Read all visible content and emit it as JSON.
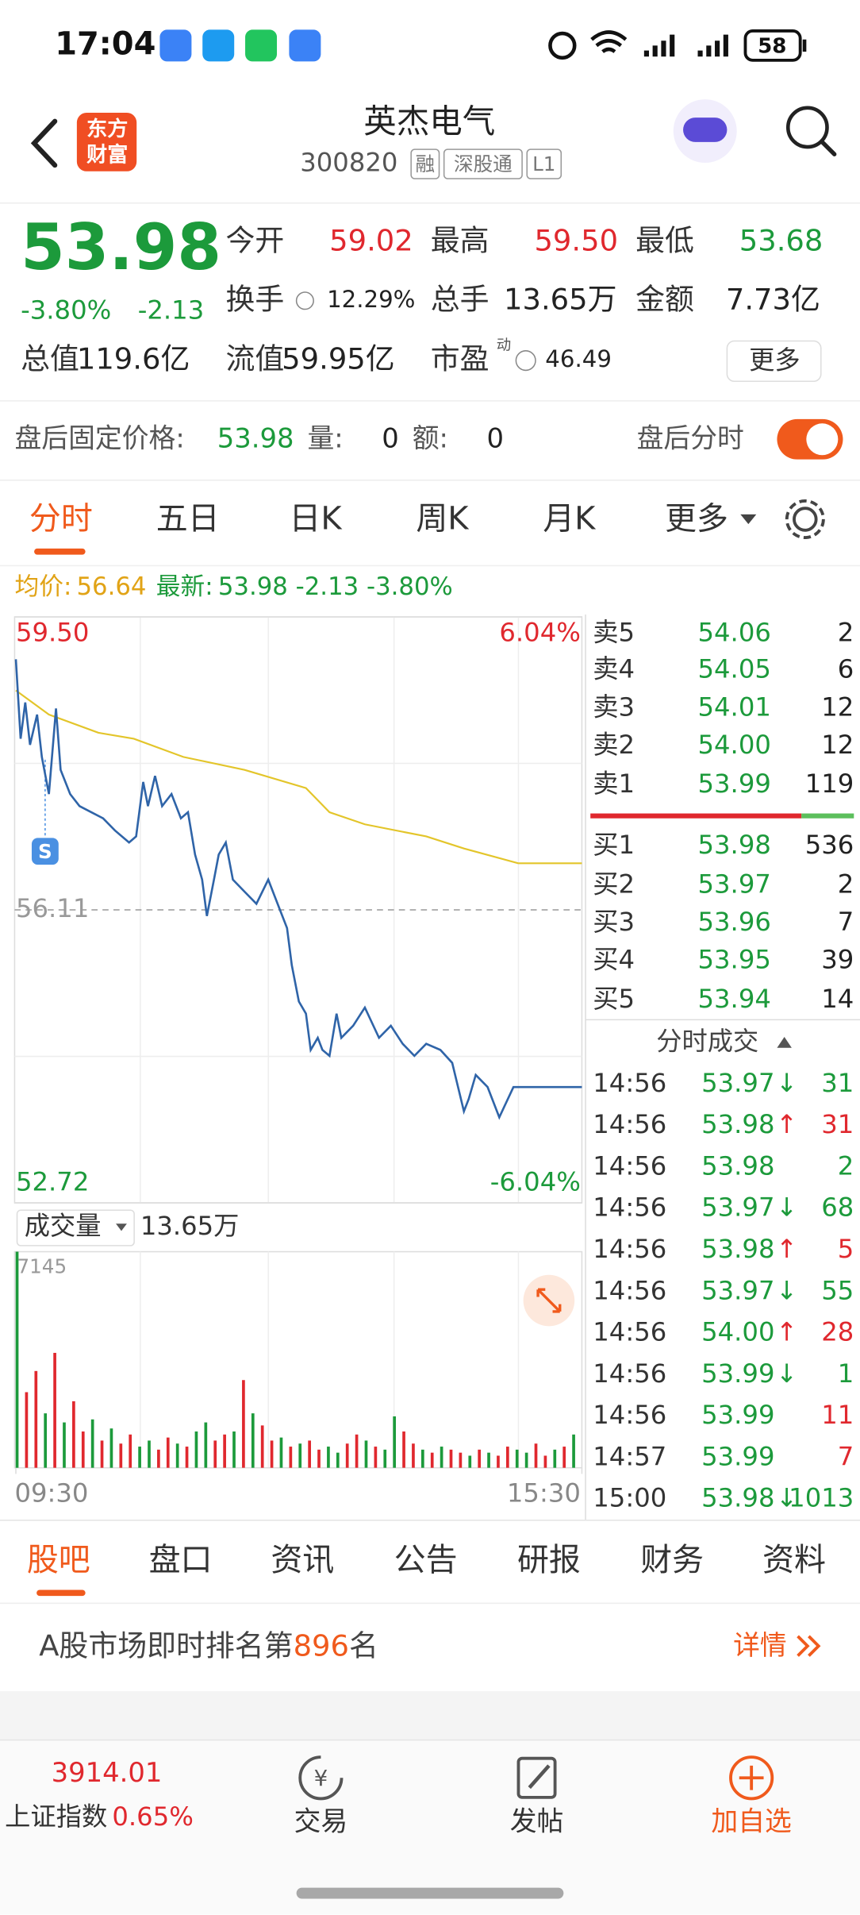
{
  "status_bar": {
    "time": "17:04",
    "battery": "58"
  },
  "header": {
    "logo": [
      "东方",
      "财富"
    ],
    "title": "英杰电气",
    "code": "300820",
    "tags": [
      "融",
      "深股通",
      "L1"
    ]
  },
  "quote": {
    "price": "53.98",
    "change_pct": "-3.80%",
    "change": "-2.13",
    "stats": [
      {
        "label": "今开",
        "value": "59.02"
      },
      {
        "label": "最高",
        "value": "59.50"
      },
      {
        "label": "最低",
        "value": "53.68"
      },
      {
        "label": "换手",
        "value": "12.29%"
      },
      {
        "label": "总手",
        "value": "13.65万"
      },
      {
        "label": "金额",
        "value": "7.73亿"
      },
      {
        "label": "总值",
        "value": "119.6亿"
      },
      {
        "label": "流值",
        "value": "59.95亿"
      },
      {
        "label": "市盈",
        "sup": "动",
        "value": "46.49"
      }
    ],
    "more": "更多"
  },
  "after_hours": {
    "label": "盘后固定价格:",
    "price": "53.98",
    "vol_label": "量:",
    "vol": "0",
    "amt_label": "额:",
    "amt": "0",
    "toggle_label": "盘后分时"
  },
  "tabs": [
    "分时",
    "五日",
    "日K",
    "周K",
    "月K",
    "更多"
  ],
  "info": {
    "avg_label": "均价:",
    "avg": "56.64",
    "last_label": "最新:",
    "last": "53.98 -2.13 -3.80%"
  },
  "intraday": {
    "type": "line",
    "xlim": [
      0,
      240
    ],
    "ylim": [
      52.72,
      59.5
    ],
    "y2lim": [
      -6.04,
      6.04
    ],
    "yticks": [
      52.72,
      56.11,
      {
        "value": 59.5,
        "label": "59.50"
      }
    ],
    "y2ticks": [
      {
        "value": -6.04,
        "label": "-6.04%"
      },
      {
        "value": 6.04,
        "label": "6.04%"
      }
    ],
    "xticks": [
      {
        "value": 0,
        "label": "09:30"
      },
      {
        "value": 240,
        "label": "15:30"
      }
    ],
    "price": {
      "color": "#2f64a8",
      "x": [
        0,
        2,
        4,
        6,
        9,
        11,
        14,
        17,
        19,
        23,
        27,
        32,
        37,
        42,
        48,
        51,
        54,
        56,
        59,
        62,
        66,
        70,
        73,
        76,
        79,
        81,
        84,
        86,
        89,
        92,
        97,
        102,
        107,
        112,
        115,
        117,
        120,
        123,
        125,
        128,
        130,
        133,
        136,
        138,
        143,
        148,
        154,
        159,
        164,
        169,
        174,
        180,
        185,
        190,
        192,
        195,
        200,
        205,
        211,
        216,
        240
      ],
      "values": [
        59.01,
        58.09,
        58.51,
        58.02,
        58.37,
        57.88,
        57.45,
        58.44,
        57.73,
        57.45,
        57.31,
        57.24,
        57.17,
        57.03,
        56.89,
        56.96,
        57.59,
        57.31,
        57.66,
        57.31,
        57.45,
        57.17,
        57.24,
        56.75,
        56.46,
        56.04,
        56.46,
        56.75,
        56.89,
        56.46,
        56.32,
        56.18,
        56.46,
        56.11,
        55.9,
        55.47,
        55.05,
        54.91,
        54.49,
        54.63,
        54.49,
        54.42,
        54.91,
        54.63,
        54.77,
        54.98,
        54.63,
        54.77,
        54.56,
        54.42,
        54.56,
        54.49,
        54.34,
        53.78,
        53.92,
        54.2,
        54.06,
        53.71,
        54.06,
        54.06,
        54.06
      ]
    },
    "avg": {
      "color": "#e3c52a",
      "x": [
        0,
        14,
        35,
        50,
        71,
        97,
        123,
        133,
        148,
        174,
        190,
        213,
        240
      ],
      "values": [
        58.65,
        58.37,
        58.16,
        58.09,
        57.88,
        57.73,
        57.52,
        57.24,
        57.1,
        56.96,
        56.82,
        56.65,
        56.65
      ]
    }
  },
  "volume": {
    "label": "成交量",
    "total": "13.65万",
    "ylim": [
      0,
      7145
    ],
    "x": [
      0,
      4,
      8,
      12,
      16,
      20,
      24,
      28,
      32,
      36,
      40,
      44,
      48,
      52,
      56,
      60,
      64,
      68,
      72,
      76,
      80,
      84,
      88,
      92,
      96,
      100,
      104,
      108,
      112,
      116,
      120,
      124,
      128,
      132,
      136,
      140,
      144,
      148,
      152,
      156,
      160,
      164,
      168,
      172,
      176,
      180,
      184,
      188,
      192,
      196,
      200,
      204,
      208,
      212,
      216,
      220,
      224,
      228,
      232,
      236
    ],
    "values": [
      7145,
      2500,
      3200,
      1800,
      3800,
      1500,
      2200,
      1200,
      1600,
      900,
      1300,
      800,
      1100,
      700,
      900,
      600,
      1000,
      800,
      700,
      1200,
      1500,
      900,
      1100,
      1200,
      2900,
      1800,
      1400,
      900,
      1000,
      700,
      800,
      900,
      600,
      700,
      500,
      800,
      1100,
      900,
      700,
      600,
      1700,
      1200,
      800,
      600,
      500,
      700,
      600,
      500,
      400,
      600,
      500,
      400,
      700,
      600,
      500,
      800,
      400,
      600,
      700,
      1100
    ],
    "colors": [
      "#1c9a3b",
      "#e0282e",
      "#e0282e",
      "#1c9a3b",
      "#e0282e",
      "#1c9a3b",
      "#e0282e",
      "#e0282e",
      "#1c9a3b",
      "#e0282e",
      "#1c9a3b",
      "#e0282e",
      "#e0282e",
      "#1c9a3b",
      "#1c9a3b",
      "#e0282e",
      "#e0282e",
      "#1c9a3b",
      "#e0282e",
      "#1c9a3b",
      "#1c9a3b",
      "#e0282e",
      "#e0282e",
      "#1c9a3b",
      "#e0282e",
      "#1c9a3b",
      "#e0282e",
      "#e0282e",
      "#1c9a3b",
      "#e0282e",
      "#1c9a3b",
      "#e0282e",
      "#e0282e",
      "#1c9a3b",
      "#1c9a3b",
      "#e0282e",
      "#e0282e",
      "#1c9a3b",
      "#e0282e",
      "#1c9a3b",
      "#1c9a3b",
      "#e0282e",
      "#e0282e",
      "#1c9a3b",
      "#e0282e",
      "#1c9a3b",
      "#e0282e",
      "#e0282e",
      "#1c9a3b",
      "#e0282e",
      "#1c9a3b",
      "#e0282e",
      "#e0282e",
      "#1c9a3b",
      "#1c9a3b",
      "#e0282e",
      "#e0282e",
      "#1c9a3b",
      "#e0282e",
      "#1c9a3b"
    ]
  },
  "order_book": {
    "asks": [
      {
        "label": "卖5",
        "price": "54.06",
        "vol": "2"
      },
      {
        "label": "卖4",
        "price": "54.05",
        "vol": "6"
      },
      {
        "label": "卖3",
        "price": "54.01",
        "vol": "12"
      },
      {
        "label": "卖2",
        "price": "54.00",
        "vol": "12"
      },
      {
        "label": "卖1",
        "price": "53.99",
        "vol": "119"
      }
    ],
    "bids": [
      {
        "label": "买1",
        "price": "53.98",
        "vol": "536"
      },
      {
        "label": "买2",
        "price": "53.97",
        "vol": "2"
      },
      {
        "label": "买3",
        "price": "53.96",
        "vol": "7"
      },
      {
        "label": "买4",
        "price": "53.95",
        "vol": "39"
      },
      {
        "label": "买5",
        "price": "53.94",
        "vol": "14"
      }
    ]
  },
  "trades": {
    "title": "分时成交",
    "rows": [
      {
        "time": "14:56",
        "price": "53.97",
        "dir": "↓",
        "vol": "31",
        "price_color": "#1c9a3b",
        "vol_color": "#1c9a3b"
      },
      {
        "time": "14:56",
        "price": "53.98",
        "dir": "↑",
        "vol": "31",
        "price_color": "#1c9a3b",
        "vol_color": "#e0282e"
      },
      {
        "time": "14:56",
        "price": "53.98",
        "vol": "2",
        "price_color": "#1c9a3b",
        "vol_color": "#1c9a3b"
      },
      {
        "time": "14:56",
        "price": "53.97",
        "dir": "↓",
        "vol": "68",
        "price_color": "#1c9a3b",
        "vol_color": "#1c9a3b"
      },
      {
        "time": "14:56",
        "price": "53.98",
        "dir": "↑",
        "vol": "5",
        "price_color": "#1c9a3b",
        "vol_color": "#e0282e"
      },
      {
        "time": "14:56",
        "price": "53.97",
        "dir": "↓",
        "vol": "55",
        "price_color": "#1c9a3b",
        "vol_color": "#1c9a3b"
      },
      {
        "time": "14:56",
        "price": "54.00",
        "dir": "↑",
        "vol": "28",
        "price_color": "#1c9a3b",
        "vol_color": "#e0282e"
      },
      {
        "time": "14:56",
        "price": "53.99",
        "dir": "↓",
        "vol": "1",
        "price_color": "#1c9a3b",
        "vol_color": "#1c9a3b"
      },
      {
        "time": "14:56",
        "price": "53.99",
        "vol": "11",
        "price_color": "#1c9a3b",
        "vol_color": "#e0282e"
      },
      {
        "time": "14:57",
        "price": "53.99",
        "vol": "7",
        "price_color": "#1c9a3b",
        "vol_color": "#e0282e"
      },
      {
        "time": "15:00",
        "price": "53.98",
        "dir": "↓",
        "vol": "1013",
        "price_color": "#1c9a3b",
        "vol_color": "#1c9a3b"
      }
    ]
  },
  "bottom_tabs": [
    "股吧",
    "盘口",
    "资讯",
    "公告",
    "研报",
    "财务",
    "资料"
  ],
  "rank": {
    "prefix": "A股市场即时排名第",
    "rank": "896",
    "suffix": "名",
    "link": "详情"
  },
  "footer": {
    "index_value": "3914.01",
    "index_name": "上证指数",
    "index_change": "0.65%",
    "actions": [
      "交易",
      "发帖",
      "加自选"
    ]
  }
}
